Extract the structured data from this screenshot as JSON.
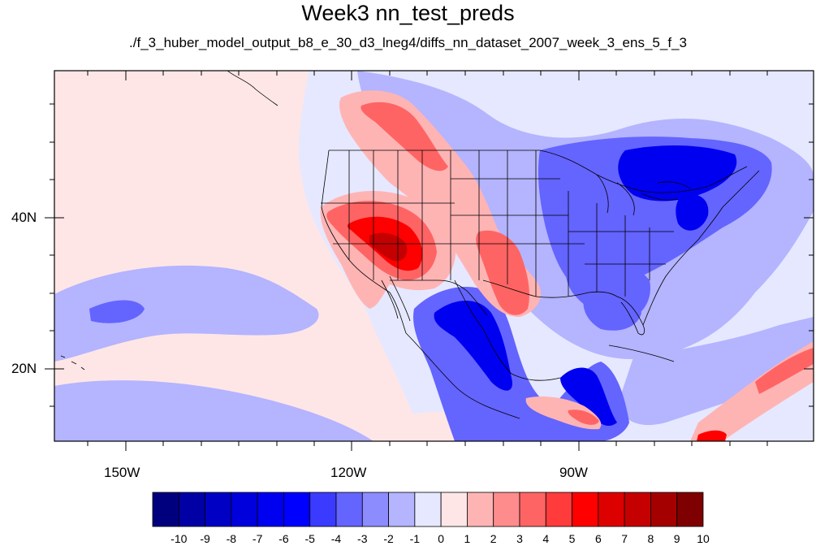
{
  "title": "Week3 nn_test_preds",
  "subtitle": "./f_3_huber_model_output_b8_e_30_d3_lneg4/diffs_nn_dataset_2007_week_3_ens_5_f_3",
  "axes": {
    "lat_labels": [
      "40N",
      "20N"
    ],
    "lon_labels": [
      "150W",
      "120W",
      "90W"
    ]
  },
  "colorbar": {
    "labels": [
      "-10",
      "-9",
      "-8",
      "-7",
      "-6",
      "-5",
      "-4",
      "-3",
      "-2",
      "-1",
      "0",
      "1",
      "2",
      "3",
      "4",
      "5",
      "6",
      "7",
      "8",
      "9",
      "10"
    ],
    "colors": [
      "#00007f",
      "#0000a4",
      "#0000c4",
      "#0000dd",
      "#0000f0",
      "#0000ff",
      "#3b3bff",
      "#6464ff",
      "#8c8cff",
      "#b4b4ff",
      "#e6e8ff",
      "#ffe6e6",
      "#ffb4b4",
      "#ff8c8c",
      "#ff6464",
      "#ff3b3b",
      "#ff0000",
      "#dd0000",
      "#c40000",
      "#a40000",
      "#7f0000"
    ]
  },
  "map_colors": {
    "background": "#e6e8ff",
    "ocean_pink": "#ffe6e6",
    "light_blue": "#b4b4ff",
    "mid_blue": "#6464ff",
    "blue": "#0000f0",
    "light_red": "#ffb4b4",
    "mid_red": "#ff6464",
    "red": "#ff0000",
    "dark_red": "#c40000"
  }
}
